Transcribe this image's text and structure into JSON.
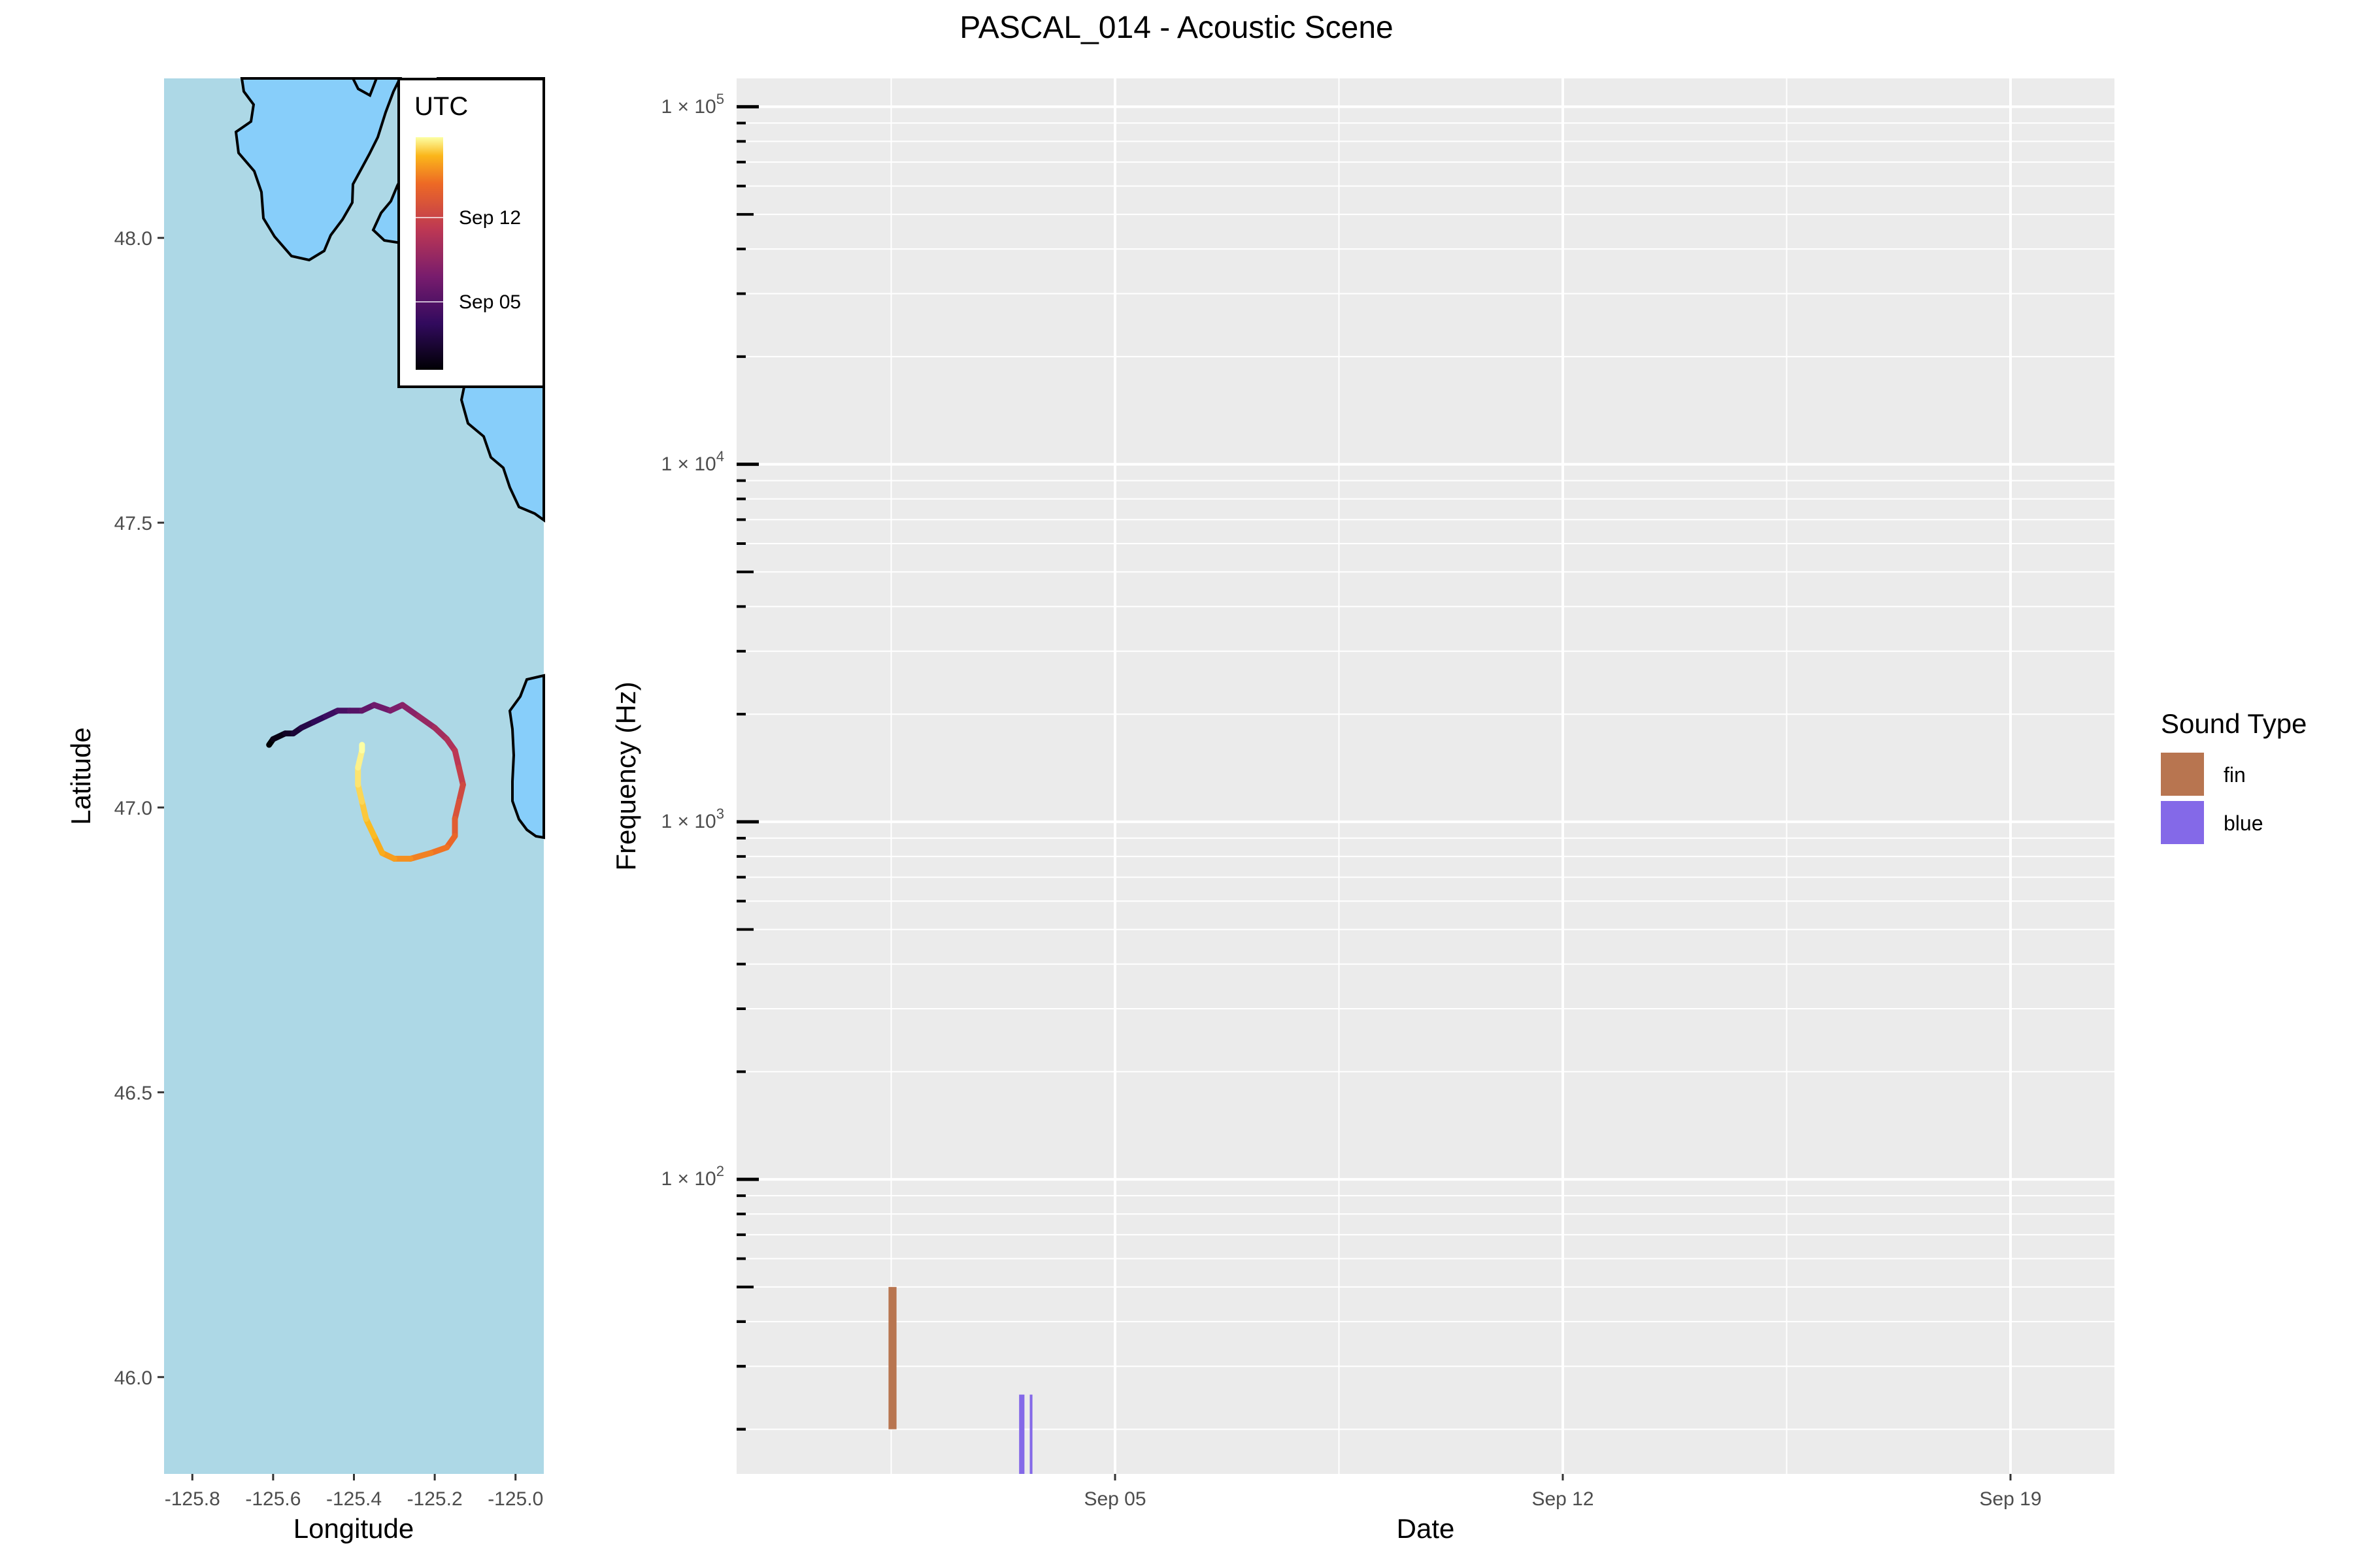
{
  "title": "PASCAL_014 - Acoustic Scene",
  "chart_data": [
    {
      "type": "map-track",
      "xlabel": "Longitude",
      "ylabel": "Latitude",
      "xlim": [
        -125.87,
        -124.93
      ],
      "ylim": [
        45.83,
        48.28
      ],
      "x_ticks": [
        -125.8,
        -125.6,
        -125.4,
        -125.2,
        -125.0
      ],
      "x_tick_labels": [
        "-125.8",
        "-125.6",
        "-125.4",
        "-125.2",
        "-125.0"
      ],
      "y_ticks": [
        46.0,
        46.5,
        47.0,
        47.5,
        48.0
      ],
      "y_tick_labels": [
        "46.0",
        "46.5",
        "47.0",
        "47.5",
        "48.0"
      ],
      "colors": {
        "ocean": "#add8e6",
        "land": "#87cefa",
        "coast": "#000000"
      },
      "legend": {
        "title": "UTC",
        "placement": "top-right",
        "colormap": "inferno",
        "labels": [
          "Sep 12",
          "Sep 05"
        ]
      },
      "track": {
        "colormap": "inferno",
        "points": [
          [
            -125.61,
            47.11
          ],
          [
            -125.6,
            47.12
          ],
          [
            -125.57,
            47.13
          ],
          [
            -125.55,
            47.13
          ],
          [
            -125.53,
            47.14
          ],
          [
            -125.5,
            47.15
          ],
          [
            -125.47,
            47.16
          ],
          [
            -125.44,
            47.17
          ],
          [
            -125.41,
            47.17
          ],
          [
            -125.38,
            47.17
          ],
          [
            -125.35,
            47.18
          ],
          [
            -125.31,
            47.17
          ],
          [
            -125.28,
            47.18
          ],
          [
            -125.24,
            47.16
          ],
          [
            -125.2,
            47.14
          ],
          [
            -125.17,
            47.12
          ],
          [
            -125.15,
            47.1
          ],
          [
            -125.14,
            47.07
          ],
          [
            -125.13,
            47.04
          ],
          [
            -125.14,
            47.01
          ],
          [
            -125.15,
            46.98
          ],
          [
            -125.15,
            46.95
          ],
          [
            -125.17,
            46.93
          ],
          [
            -125.21,
            46.92
          ],
          [
            -125.26,
            46.91
          ],
          [
            -125.3,
            46.91
          ],
          [
            -125.33,
            46.92
          ],
          [
            -125.35,
            46.95
          ],
          [
            -125.37,
            46.98
          ],
          [
            -125.38,
            47.01
          ],
          [
            -125.39,
            47.04
          ],
          [
            -125.39,
            47.07
          ],
          [
            -125.38,
            47.1
          ],
          [
            -125.38,
            47.11
          ]
        ]
      }
    },
    {
      "type": "bar",
      "xlabel": "Date",
      "ylabel": "Frequency (Hz)",
      "y_scale": "log",
      "ylim": [
        15,
        120000
      ],
      "x_tick_labels": [
        "Sep 05",
        "Sep 12",
        "Sep 19"
      ],
      "y_tick_labels": [
        "1 × 10^5",
        "1 × 10^4",
        "1 × 10^3",
        "1 × 10^2"
      ],
      "grid": true,
      "legend": {
        "title": "Sound Type",
        "placement": "right"
      },
      "series": [
        {
          "name": "fin",
          "color": "#b87550",
          "bars": [
            {
              "start": "2022-09-01T11:00",
              "end": "2022-09-01T14:00",
              "low": 20,
              "high": 50
            }
          ]
        },
        {
          "name": "blue",
          "color": "#8469e8",
          "bars": [
            {
              "start": "2022-09-03T12:00",
              "end": "2022-09-03T14:00",
              "low": 15,
              "high": 25
            },
            {
              "start": "2022-09-03T16:00",
              "end": "2022-09-03T17:00",
              "low": 15,
              "high": 25
            }
          ]
        }
      ],
      "x_range": [
        "2022-08-30T02:00",
        "2022-09-20T15:00"
      ]
    }
  ]
}
